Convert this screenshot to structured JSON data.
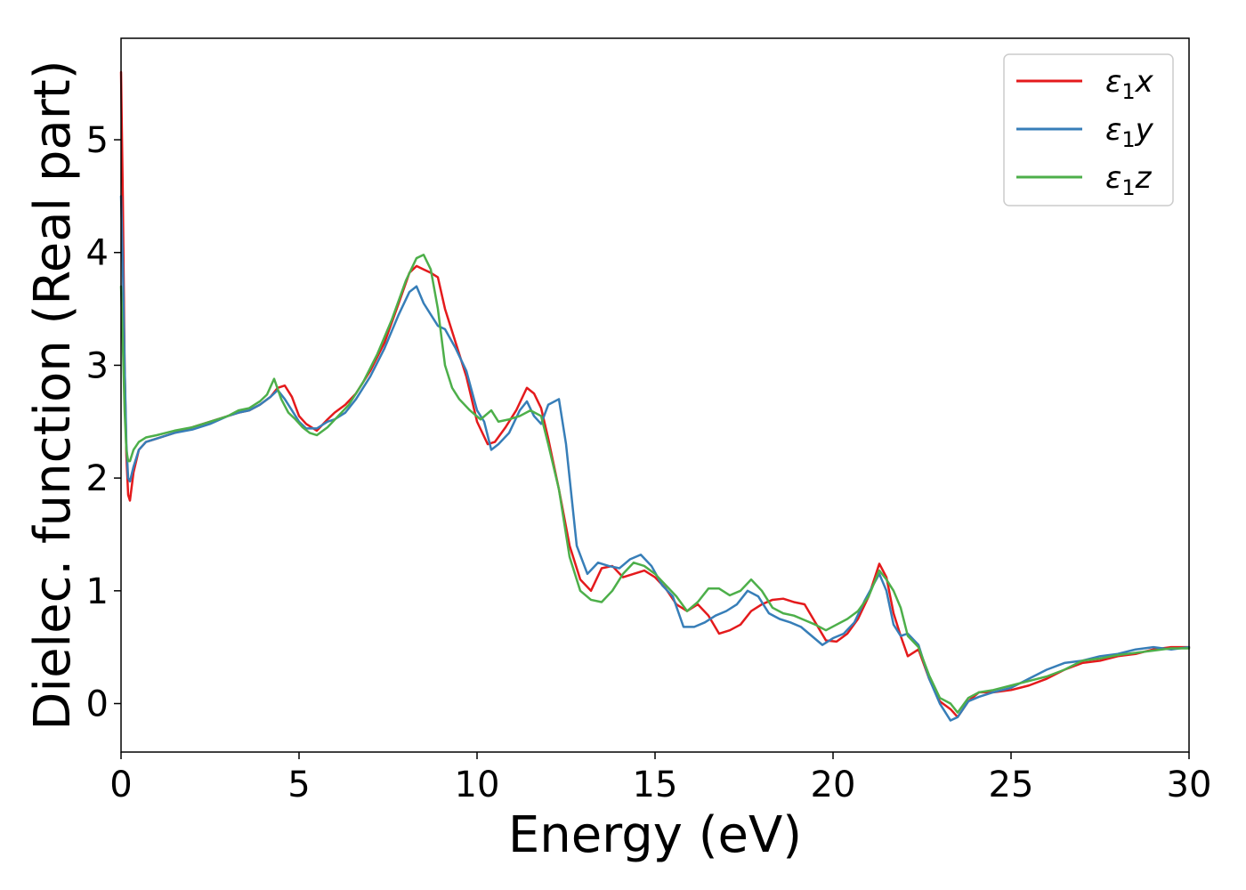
{
  "chart_data": {
    "type": "line",
    "title": "",
    "xlabel": "Energy (eV)",
    "ylabel": "Dielec. function (Real part)",
    "xlim": [
      0,
      30
    ],
    "ylim": [
      -0.43,
      5.9
    ],
    "xticks": [
      0,
      5,
      10,
      15,
      20,
      25,
      30
    ],
    "yticks": [
      0,
      1,
      2,
      3,
      4,
      5
    ],
    "grid": false,
    "legend": {
      "position": "top-right"
    },
    "series": [
      {
        "name": "ε₁x",
        "legend_base": "ε",
        "legend_sub": "1",
        "legend_suffix": "x",
        "color": "#e41a1c",
        "x": [
          0,
          0.05,
          0.1,
          0.15,
          0.2,
          0.25,
          0.35,
          0.5,
          0.7,
          1,
          1.5,
          2,
          2.5,
          3,
          3.3,
          3.6,
          3.9,
          4.2,
          4.4,
          4.6,
          4.8,
          5,
          5.2,
          5.5,
          5.8,
          6,
          6.3,
          6.6,
          7,
          7.4,
          7.8,
          8.1,
          8.3,
          8.5,
          8.7,
          8.9,
          9.1,
          9.4,
          9.7,
          10,
          10.3,
          10.5,
          10.8,
          11.1,
          11.4,
          11.6,
          11.8,
          12,
          12.3,
          12.6,
          12.9,
          13.2,
          13.5,
          13.8,
          14.1,
          14.4,
          14.7,
          15,
          15.3,
          15.6,
          15.9,
          16.2,
          16.5,
          16.8,
          17.1,
          17.4,
          17.7,
          18,
          18.3,
          18.6,
          18.9,
          19.2,
          19.5,
          19.8,
          20.1,
          20.4,
          20.7,
          21,
          21.3,
          21.5,
          21.7,
          21.9,
          22.1,
          22.4,
          22.7,
          23,
          23.3,
          23.5,
          23.8,
          24.1,
          24.5,
          25,
          25.5,
          26,
          26.5,
          27,
          27.5,
          28,
          28.5,
          29,
          29.5,
          30
        ],
        "y": [
          5.6,
          4.5,
          3.0,
          2.2,
          1.85,
          1.8,
          2.05,
          2.25,
          2.32,
          2.35,
          2.4,
          2.45,
          2.5,
          2.55,
          2.58,
          2.6,
          2.65,
          2.72,
          2.8,
          2.82,
          2.72,
          2.55,
          2.48,
          2.42,
          2.52,
          2.58,
          2.65,
          2.75,
          2.95,
          3.2,
          3.55,
          3.82,
          3.88,
          3.85,
          3.82,
          3.78,
          3.5,
          3.2,
          2.9,
          2.5,
          2.3,
          2.32,
          2.45,
          2.6,
          2.8,
          2.75,
          2.62,
          2.35,
          1.9,
          1.4,
          1.1,
          1.0,
          1.2,
          1.22,
          1.12,
          1.15,
          1.18,
          1.12,
          1.02,
          0.88,
          0.82,
          0.88,
          0.78,
          0.62,
          0.65,
          0.7,
          0.82,
          0.88,
          0.92,
          0.93,
          0.9,
          0.88,
          0.72,
          0.56,
          0.55,
          0.62,
          0.75,
          0.95,
          1.24,
          1.12,
          0.8,
          0.6,
          0.42,
          0.48,
          0.22,
          0.02,
          -0.05,
          -0.12,
          0.02,
          0.1,
          0.1,
          0.12,
          0.16,
          0.22,
          0.3,
          0.36,
          0.38,
          0.42,
          0.44,
          0.48,
          0.5,
          0.5
        ]
      },
      {
        "name": "ε₁y",
        "legend_base": "ε",
        "legend_sub": "1",
        "legend_suffix": "y",
        "color": "#377eb8",
        "x": [
          0,
          0.05,
          0.1,
          0.15,
          0.2,
          0.25,
          0.35,
          0.5,
          0.7,
          1,
          1.5,
          2,
          2.5,
          3,
          3.3,
          3.6,
          3.9,
          4.2,
          4.4,
          4.6,
          4.8,
          5,
          5.2,
          5.5,
          5.8,
          6,
          6.3,
          6.6,
          7,
          7.4,
          7.8,
          8.1,
          8.3,
          8.5,
          8.7,
          8.9,
          9.1,
          9.4,
          9.7,
          10,
          10.2,
          10.4,
          10.6,
          10.9,
          11.2,
          11.4,
          11.6,
          11.8,
          12,
          12.3,
          12.5,
          12.8,
          13.1,
          13.4,
          13.7,
          14,
          14.3,
          14.6,
          14.9,
          15.2,
          15.5,
          15.8,
          16.1,
          16.4,
          16.7,
          17,
          17.3,
          17.6,
          17.9,
          18.2,
          18.5,
          18.8,
          19.1,
          19.4,
          19.7,
          20,
          20.3,
          20.6,
          20.9,
          21.3,
          21.5,
          21.7,
          21.9,
          22.1,
          22.4,
          22.7,
          23,
          23.3,
          23.5,
          23.8,
          24.1,
          24.5,
          25,
          25.5,
          26,
          26.5,
          27,
          27.5,
          28,
          28.5,
          29,
          29.5,
          30
        ],
        "y": [
          4.5,
          3.9,
          3.0,
          2.3,
          2.0,
          1.97,
          2.1,
          2.25,
          2.32,
          2.35,
          2.4,
          2.43,
          2.48,
          2.55,
          2.58,
          2.6,
          2.65,
          2.72,
          2.78,
          2.7,
          2.6,
          2.5,
          2.44,
          2.44,
          2.5,
          2.52,
          2.58,
          2.7,
          2.9,
          3.15,
          3.45,
          3.65,
          3.7,
          3.55,
          3.45,
          3.35,
          3.32,
          3.15,
          2.95,
          2.6,
          2.5,
          2.25,
          2.3,
          2.4,
          2.6,
          2.68,
          2.55,
          2.48,
          2.65,
          2.7,
          2.3,
          1.4,
          1.15,
          1.25,
          1.22,
          1.2,
          1.28,
          1.32,
          1.22,
          1.05,
          0.95,
          0.68,
          0.68,
          0.72,
          0.78,
          0.82,
          0.88,
          1.0,
          0.95,
          0.8,
          0.75,
          0.72,
          0.68,
          0.6,
          0.52,
          0.58,
          0.62,
          0.72,
          0.92,
          1.15,
          1.0,
          0.7,
          0.6,
          0.62,
          0.52,
          0.22,
          0.0,
          -0.15,
          -0.12,
          0.02,
          0.06,
          0.1,
          0.14,
          0.22,
          0.3,
          0.36,
          0.38,
          0.42,
          0.44,
          0.48,
          0.5,
          0.48,
          0.5
        ]
      },
      {
        "name": "ε₁z",
        "legend_base": "ε",
        "legend_sub": "1",
        "legend_suffix": "z",
        "color": "#4daf4a",
        "x": [
          0,
          0.05,
          0.1,
          0.15,
          0.2,
          0.25,
          0.35,
          0.5,
          0.7,
          1,
          1.5,
          2,
          2.5,
          3,
          3.3,
          3.6,
          3.9,
          4.1,
          4.3,
          4.5,
          4.7,
          4.9,
          5.1,
          5.3,
          5.5,
          5.8,
          6.1,
          6.4,
          6.8,
          7.2,
          7.6,
          8,
          8.3,
          8.5,
          8.7,
          8.9,
          9.1,
          9.3,
          9.5,
          9.8,
          10.1,
          10.4,
          10.6,
          10.9,
          11.2,
          11.5,
          11.8,
          12,
          12.3,
          12.6,
          12.9,
          13.2,
          13.5,
          13.8,
          14.1,
          14.4,
          14.7,
          15,
          15.3,
          15.6,
          15.9,
          16.2,
          16.5,
          16.8,
          17.1,
          17.4,
          17.7,
          18,
          18.3,
          18.6,
          18.9,
          19.2,
          19.5,
          19.8,
          20.1,
          20.4,
          20.7,
          21,
          21.3,
          21.5,
          21.7,
          21.9,
          22.1,
          22.4,
          22.7,
          23,
          23.3,
          23.5,
          23.8,
          24.1,
          24.5,
          25,
          25.5,
          26,
          26.5,
          27,
          27.5,
          28,
          28.5,
          29,
          29.5,
          30
        ],
        "y": [
          3.7,
          3.2,
          2.6,
          2.25,
          2.15,
          2.15,
          2.25,
          2.32,
          2.36,
          2.38,
          2.42,
          2.45,
          2.5,
          2.55,
          2.6,
          2.62,
          2.68,
          2.74,
          2.88,
          2.7,
          2.58,
          2.52,
          2.45,
          2.4,
          2.38,
          2.45,
          2.55,
          2.65,
          2.85,
          3.1,
          3.4,
          3.75,
          3.95,
          3.98,
          3.85,
          3.5,
          3.0,
          2.8,
          2.7,
          2.6,
          2.52,
          2.6,
          2.5,
          2.52,
          2.55,
          2.6,
          2.55,
          2.3,
          1.9,
          1.3,
          1.0,
          0.92,
          0.9,
          1.0,
          1.15,
          1.25,
          1.22,
          1.15,
          1.05,
          0.95,
          0.82,
          0.9,
          1.02,
          1.02,
          0.96,
          1.0,
          1.1,
          1.0,
          0.85,
          0.8,
          0.78,
          0.74,
          0.7,
          0.65,
          0.7,
          0.75,
          0.82,
          0.95,
          1.18,
          1.1,
          1.0,
          0.85,
          0.6,
          0.5,
          0.25,
          0.05,
          0.0,
          -0.08,
          0.05,
          0.1,
          0.12,
          0.16,
          0.2,
          0.24,
          0.3,
          0.38,
          0.4,
          0.43,
          0.45,
          0.47,
          0.49,
          0.49
        ]
      }
    ]
  }
}
